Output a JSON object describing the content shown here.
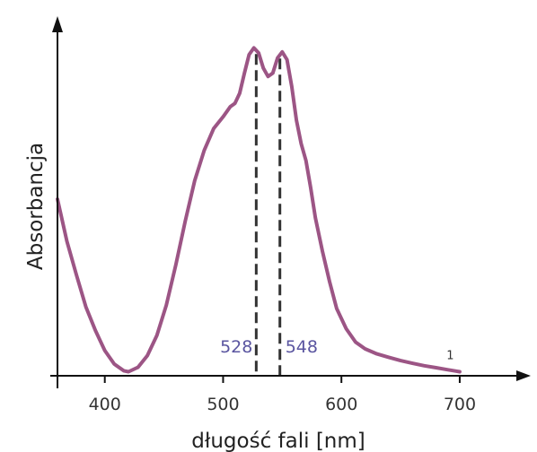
{
  "chart_data": {
    "type": "line",
    "title": "",
    "xlabel": "długość fali [nm]",
    "ylabel": "Absorbancja",
    "xlim": [
      360,
      760
    ],
    "ylim": [
      0,
      1
    ],
    "xticks": [
      400,
      500,
      600,
      700
    ],
    "tick_labels": [
      "400",
      "500",
      "600",
      "700"
    ],
    "grid": false,
    "colors": {
      "curve": "#9c5585",
      "peak_labels": "#5a55a0",
      "axes": "#111111",
      "dashes": "#333333"
    },
    "peaks": [
      {
        "x": 528,
        "label": "528"
      },
      {
        "x": 548,
        "label": "548"
      }
    ],
    "curve_label": {
      "x": 692,
      "text": "1"
    },
    "series": [
      {
        "name": "",
        "x": [
          360,
          368,
          376,
          384,
          392,
          400,
          408,
          416,
          420,
          428,
          436,
          444,
          452,
          460,
          468,
          476,
          484,
          492,
          500,
          506,
          510,
          514,
          518,
          522,
          526,
          530,
          534,
          538,
          542,
          546,
          550,
          554,
          558,
          562,
          566,
          570,
          574,
          578,
          584,
          590,
          596,
          604,
          612,
          620,
          630,
          640,
          650,
          660,
          670,
          680,
          690,
          700
        ],
        "y": [
          0.525,
          0.4,
          0.3,
          0.205,
          0.135,
          0.075,
          0.035,
          0.015,
          0.012,
          0.025,
          0.06,
          0.12,
          0.21,
          0.33,
          0.46,
          0.58,
          0.67,
          0.735,
          0.77,
          0.8,
          0.81,
          0.84,
          0.9,
          0.955,
          0.975,
          0.96,
          0.915,
          0.89,
          0.9,
          0.945,
          0.963,
          0.94,
          0.86,
          0.76,
          0.69,
          0.64,
          0.56,
          0.47,
          0.37,
          0.28,
          0.2,
          0.14,
          0.1,
          0.08,
          0.065,
          0.055,
          0.045,
          0.037,
          0.03,
          0.024,
          0.018,
          0.012
        ]
      }
    ]
  }
}
